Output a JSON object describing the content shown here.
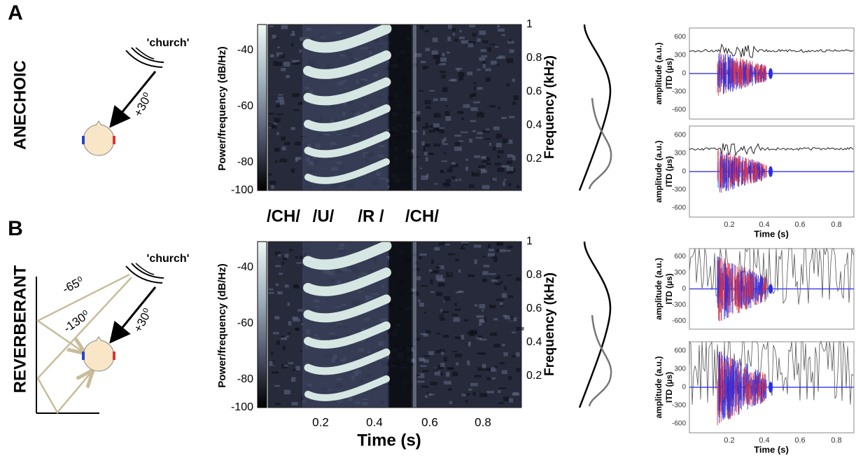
{
  "panel_labels": [
    "A",
    "B"
  ],
  "conditions": [
    "ANECHOIC",
    "REVERBERANT"
  ],
  "scene": {
    "source": "'church'",
    "direct": "+30⁰",
    "reflections": [
      "-65⁰",
      "-130⁰"
    ]
  },
  "spectrogram": {
    "colorbar_label": "Power/frequency (dB/Hz)",
    "colorbar_ticks": [
      -40,
      -60,
      -80,
      -100
    ],
    "freq_label": "Frequency (kHz)",
    "freq_ticks": [
      1,
      0.8,
      0.6,
      0.4,
      0.2
    ],
    "time_ticks": [
      0.2,
      0.4,
      0.6,
      0.8
    ],
    "time_label": "Time (s)",
    "phonemes": [
      "/CH/",
      "/U/",
      "/R /",
      "/CH/"
    ]
  },
  "traces": {
    "amp_label": "amplitude (a.u.)",
    "itd_label": "ITD (µs)",
    "yticks": [
      600,
      300,
      0,
      -300,
      -600
    ],
    "xticks": [
      0.2,
      0.4,
      0.6,
      0.8
    ],
    "xlabel": "Time (s)"
  }
}
